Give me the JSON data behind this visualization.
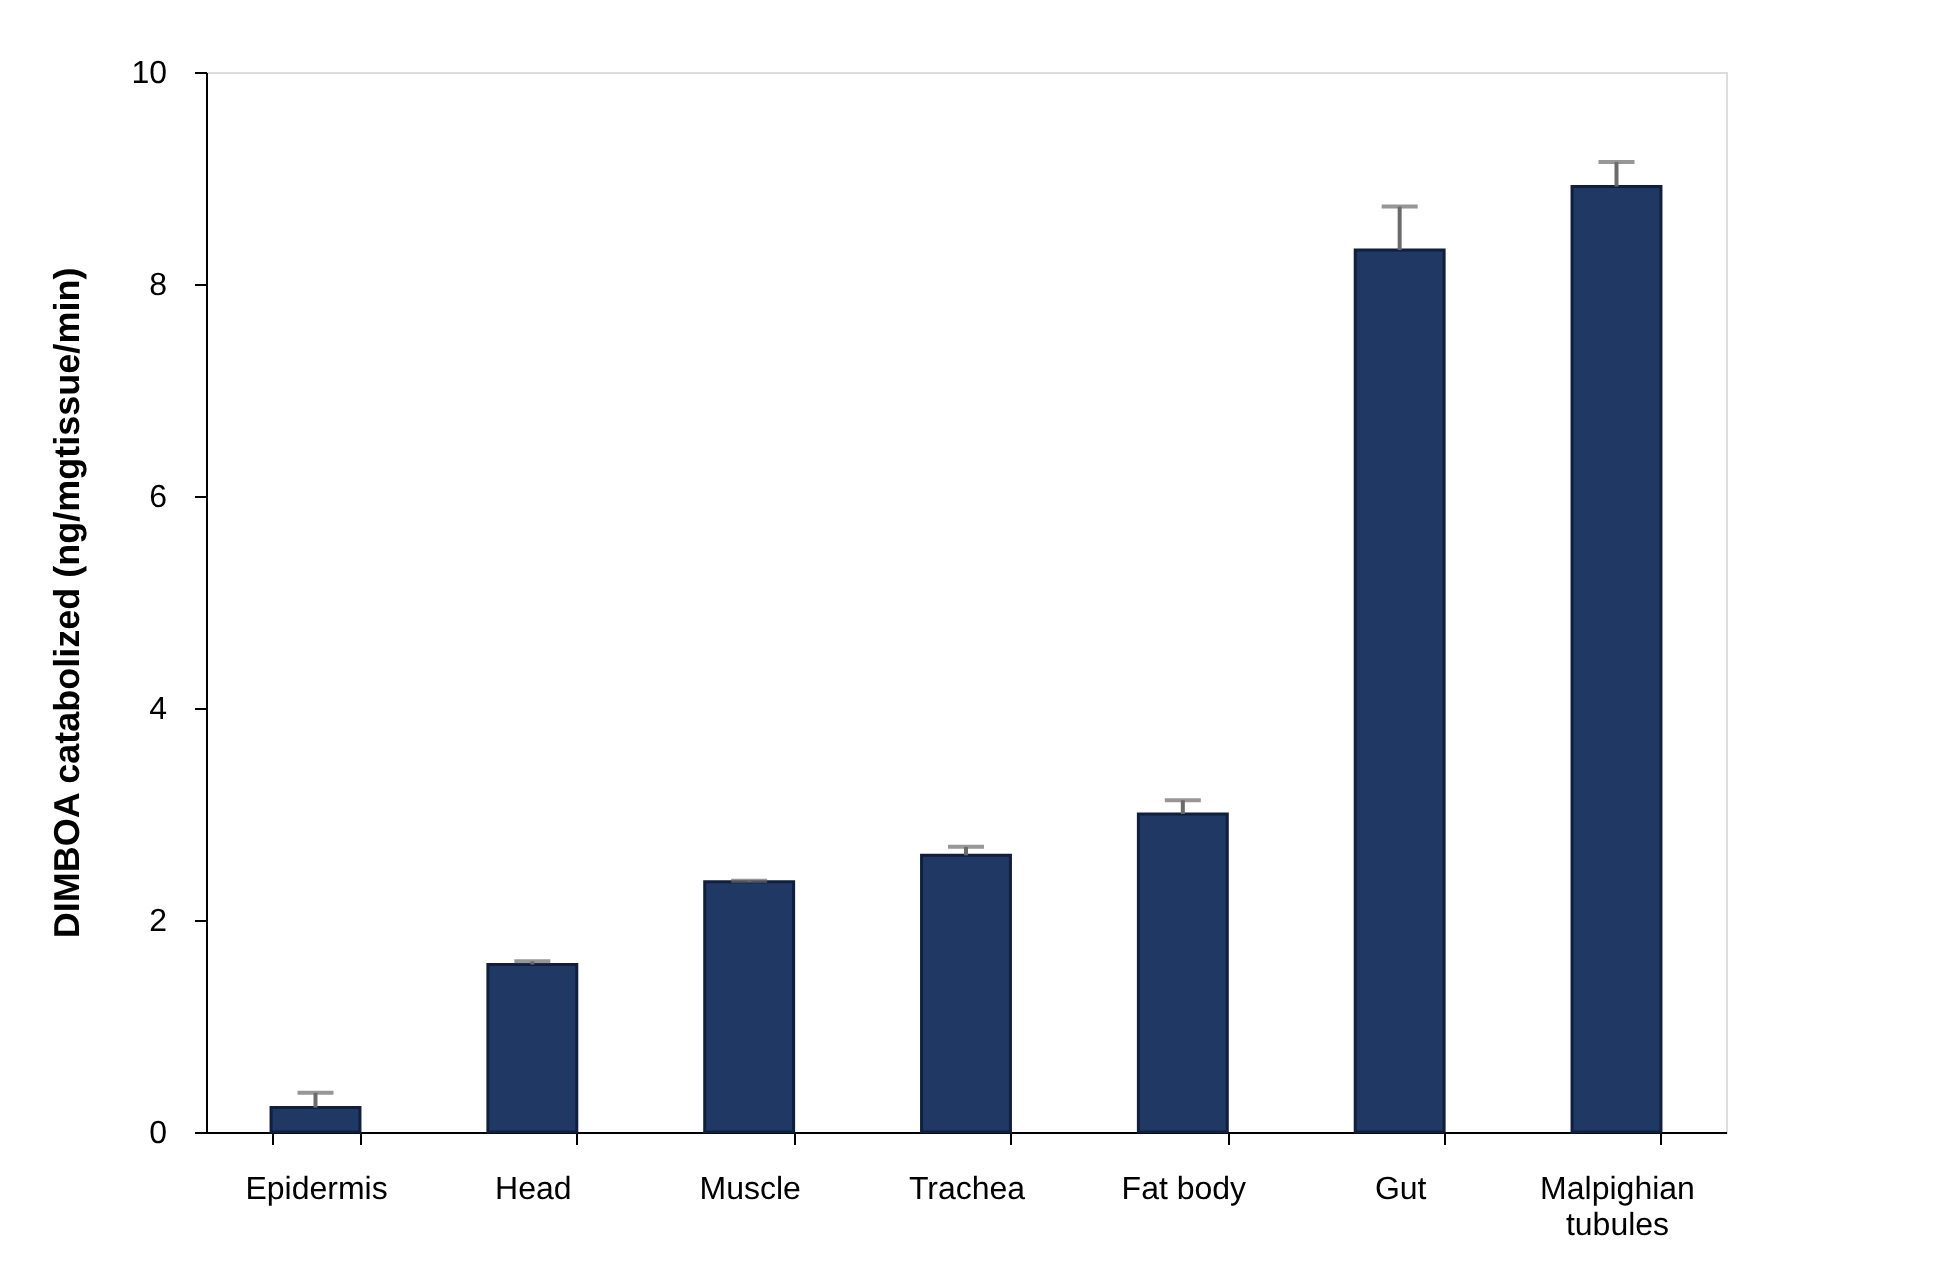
{
  "chart_data": {
    "type": "bar",
    "ylabel": "DIMBOA catabolized (ng/mgtissue/min)",
    "categories": [
      "Epidermis",
      "Head",
      "Muscle",
      "Trachea",
      "Fat body",
      "Gut",
      "Malpighian tubules"
    ],
    "values": [
      0.23,
      1.58,
      2.36,
      2.61,
      3.0,
      8.32,
      8.92
    ],
    "errors": [
      0.14,
      0.03,
      0.01,
      0.08,
      0.13,
      0.41,
      0.23
    ],
    "color": "#203864",
    "ylim": [
      0,
      10
    ],
    "yticks": [
      0,
      2,
      4,
      6,
      8,
      10
    ],
    "grid": false
  }
}
